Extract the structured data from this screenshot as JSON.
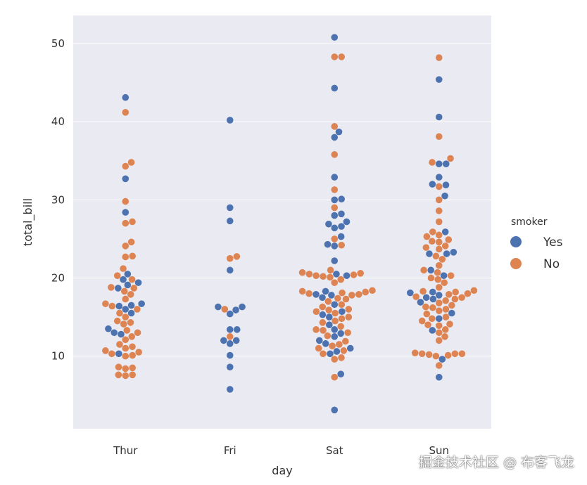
{
  "chart_data": {
    "type": "scatter",
    "kind": "swarm",
    "xlabel": "day",
    "ylabel": "total_bill",
    "categories": [
      "Thur",
      "Fri",
      "Sat",
      "Sun"
    ],
    "ylim": [
      0.7,
      53.6
    ],
    "yticks": [
      10,
      20,
      30,
      40,
      50
    ],
    "grid": true,
    "legend": {
      "title": "smoker",
      "placement": "center-right",
      "entries": [
        "Yes",
        "No"
      ]
    },
    "colors": {
      "Yes": "#4C72B0",
      "No": "#DD8452",
      "background": "#EAEAF2",
      "grid": "#FFFFFF"
    },
    "series": [
      {
        "name": "Yes",
        "values": {
          "Thur": [
            43.1,
            32.7,
            28.4,
            20.5,
            19.8,
            19.4,
            18.7,
            16.7,
            16.5,
            16.4,
            16.0,
            15.5,
            13.5,
            13.0,
            12.8,
            10.3,
            19.1
          ],
          "Fri": [
            40.2,
            29.0,
            27.3,
            21.0,
            16.3,
            16.3,
            15.9,
            15.4,
            13.4,
            13.4,
            12.0,
            12.0,
            11.6,
            10.1,
            8.6,
            5.75
          ],
          "Sat": [
            50.8,
            44.3,
            38.7,
            38.0,
            32.9,
            30.1,
            30.0,
            28.2,
            28.0,
            26.6,
            26.4,
            26.9,
            27.2,
            25.3,
            24.3,
            24.1,
            22.2,
            20.5,
            20.3,
            18.3,
            17.8,
            17.9,
            17.5,
            16.6,
            15.7,
            15.3,
            15.0,
            14.0,
            13.4,
            12.9,
            12.5,
            12.0,
            11.6,
            11.0,
            10.6,
            10.3,
            7.7,
            3.1
          ],
          "Sun": [
            45.4,
            40.6,
            34.6,
            34.6,
            32.9,
            31.9,
            30.5,
            32.0,
            25.9,
            23.1,
            23.1,
            23.3,
            21.0,
            20.3,
            18.2,
            18.1,
            17.8,
            17.5,
            17.3,
            16.9,
            15.5,
            14.8,
            13.3,
            9.6,
            7.3
          ]
        }
      },
      {
        "name": "No",
        "values": {
          "Thur": [
            41.2,
            34.8,
            34.3,
            29.8,
            27.2,
            27.0,
            24.6,
            24.1,
            22.8,
            22.7,
            21.2,
            20.3,
            19.8,
            18.8,
            18.7,
            18.3,
            17.9,
            17.3,
            16.7,
            16.4,
            16.0,
            15.5,
            15.0,
            14.5,
            14.3,
            14.1,
            13.3,
            13.0,
            12.5,
            12.1,
            11.5,
            11.2,
            11.0,
            10.7,
            10.5,
            10.3,
            10.1,
            10.0,
            8.6,
            8.5,
            8.4,
            7.6,
            7.6,
            7.5
          ],
          "Fri": [
            22.75,
            22.5,
            16.0,
            12.5
          ],
          "Sat": [
            48.3,
            48.3,
            39.4,
            35.8,
            31.3,
            29.0,
            25.0,
            24.2,
            21.0,
            20.7,
            20.6,
            20.5,
            20.4,
            20.3,
            20.2,
            20.1,
            19.8,
            19.4,
            18.4,
            18.3,
            18.2,
            18.1,
            18.0,
            17.9,
            17.8,
            17.4,
            17.3,
            17.0,
            16.6,
            16.3,
            16.0,
            15.9,
            15.7,
            15.5,
            15.0,
            14.8,
            14.5,
            14.3,
            13.8,
            13.4,
            13.3,
            13.0,
            12.6,
            11.9,
            11.5,
            11.3,
            11.0,
            10.7,
            10.3,
            9.8,
            9.6,
            7.3
          ],
          "Sun": [
            48.2,
            38.1,
            35.3,
            34.8,
            31.7,
            30.0,
            28.6,
            27.2,
            25.9,
            25.5,
            25.3,
            24.9,
            24.7,
            24.6,
            24.1,
            23.9,
            23.7,
            22.8,
            22.4,
            21.6,
            21.0,
            20.7,
            20.3,
            20.0,
            19.8,
            19.4,
            18.8,
            18.4,
            18.3,
            18.2,
            18.0,
            17.9,
            17.6,
            17.5,
            17.3,
            17.1,
            16.8,
            16.5,
            16.3,
            16.2,
            16.0,
            15.8,
            15.4,
            15.0,
            14.8,
            14.5,
            14.1,
            14.0,
            13.9,
            13.4,
            13.0,
            12.5,
            12.0,
            10.4,
            10.3,
            10.3,
            10.3,
            10.2,
            10.1,
            10.0,
            8.8
          ]
        }
      }
    ]
  },
  "watermark": "掘金技术社区 @ 布客飞龙"
}
